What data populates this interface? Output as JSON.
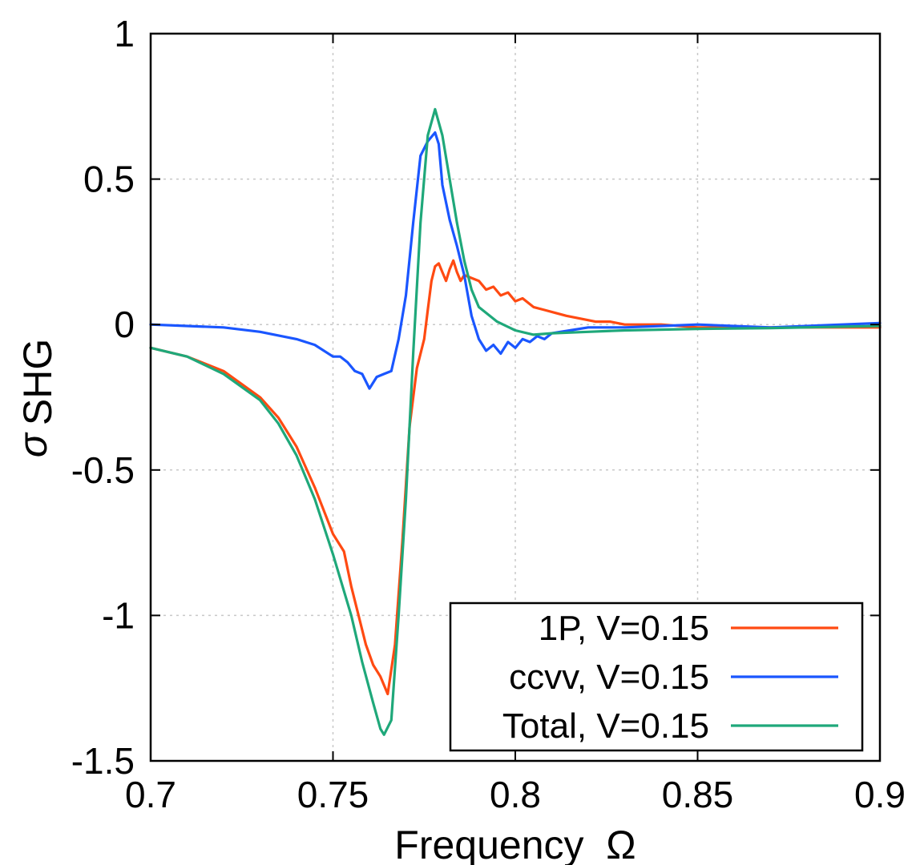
{
  "chart_data": {
    "type": "line",
    "title": "",
    "xlabel": "Frequency  Ω",
    "ylabel_main": "σ",
    "ylabel_sub": "SHG",
    "xlim": [
      0.7,
      0.9
    ],
    "ylim": [
      -1.5,
      1.0
    ],
    "grid": true,
    "legend_position": "bottom-right",
    "x_ticks": [
      0.7,
      0.75,
      0.8,
      0.85,
      0.9
    ],
    "x_tick_labels": [
      "0.7",
      "0.75",
      "0.8",
      "0.85",
      "0.9"
    ],
    "y_ticks": [
      1.0,
      0.5,
      0.0,
      -0.5,
      -1.0,
      -1.5
    ],
    "y_tick_labels": [
      "1",
      "0.5",
      "0",
      "-0.5",
      "-1",
      "-1.5"
    ],
    "series": [
      {
        "name": "1P, V=0.15",
        "color": "#ff4a12",
        "points": [
          [
            0.7,
            -0.08
          ],
          [
            0.71,
            -0.11
          ],
          [
            0.72,
            -0.16
          ],
          [
            0.73,
            -0.25
          ],
          [
            0.735,
            -0.32
          ],
          [
            0.74,
            -0.42
          ],
          [
            0.745,
            -0.56
          ],
          [
            0.75,
            -0.72
          ],
          [
            0.753,
            -0.78
          ],
          [
            0.755,
            -0.9
          ],
          [
            0.757,
            -1.0
          ],
          [
            0.759,
            -1.1
          ],
          [
            0.761,
            -1.17
          ],
          [
            0.763,
            -1.21
          ],
          [
            0.765,
            -1.27
          ],
          [
            0.767,
            -1.1
          ],
          [
            0.769,
            -0.75
          ],
          [
            0.771,
            -0.35
          ],
          [
            0.773,
            -0.15
          ],
          [
            0.775,
            -0.05
          ],
          [
            0.776,
            0.05
          ],
          [
            0.777,
            0.15
          ],
          [
            0.778,
            0.2
          ],
          [
            0.779,
            0.21
          ],
          [
            0.78,
            0.18
          ],
          [
            0.781,
            0.15
          ],
          [
            0.782,
            0.19
          ],
          [
            0.783,
            0.22
          ],
          [
            0.784,
            0.18
          ],
          [
            0.785,
            0.15
          ],
          [
            0.786,
            0.17
          ],
          [
            0.788,
            0.16
          ],
          [
            0.79,
            0.15
          ],
          [
            0.792,
            0.12
          ],
          [
            0.794,
            0.13
          ],
          [
            0.796,
            0.1
          ],
          [
            0.798,
            0.11
          ],
          [
            0.8,
            0.08
          ],
          [
            0.802,
            0.09
          ],
          [
            0.805,
            0.06
          ],
          [
            0.808,
            0.05
          ],
          [
            0.811,
            0.04
          ],
          [
            0.814,
            0.03
          ],
          [
            0.818,
            0.02
          ],
          [
            0.822,
            0.01
          ],
          [
            0.826,
            0.01
          ],
          [
            0.83,
            0.0
          ],
          [
            0.84,
            0.0
          ],
          [
            0.85,
            -0.01
          ],
          [
            0.87,
            -0.01
          ],
          [
            0.9,
            -0.01
          ]
        ]
      },
      {
        "name": "ccvv, V=0.15",
        "color": "#1a56ff",
        "points": [
          [
            0.7,
            0.0
          ],
          [
            0.71,
            -0.005
          ],
          [
            0.72,
            -0.01
          ],
          [
            0.73,
            -0.025
          ],
          [
            0.74,
            -0.05
          ],
          [
            0.745,
            -0.07
          ],
          [
            0.75,
            -0.11
          ],
          [
            0.752,
            -0.11
          ],
          [
            0.754,
            -0.13
          ],
          [
            0.756,
            -0.16
          ],
          [
            0.758,
            -0.17
          ],
          [
            0.76,
            -0.22
          ],
          [
            0.762,
            -0.18
          ],
          [
            0.764,
            -0.17
          ],
          [
            0.766,
            -0.16
          ],
          [
            0.768,
            -0.05
          ],
          [
            0.77,
            0.1
          ],
          [
            0.772,
            0.35
          ],
          [
            0.774,
            0.58
          ],
          [
            0.776,
            0.63
          ],
          [
            0.778,
            0.66
          ],
          [
            0.779,
            0.62
          ],
          [
            0.78,
            0.48
          ],
          [
            0.782,
            0.36
          ],
          [
            0.784,
            0.27
          ],
          [
            0.786,
            0.17
          ],
          [
            0.788,
            0.03
          ],
          [
            0.79,
            -0.05
          ],
          [
            0.792,
            -0.09
          ],
          [
            0.794,
            -0.07
          ],
          [
            0.796,
            -0.1
          ],
          [
            0.798,
            -0.06
          ],
          [
            0.8,
            -0.08
          ],
          [
            0.802,
            -0.05
          ],
          [
            0.804,
            -0.06
          ],
          [
            0.806,
            -0.04
          ],
          [
            0.808,
            -0.05
          ],
          [
            0.81,
            -0.03
          ],
          [
            0.815,
            -0.02
          ],
          [
            0.82,
            -0.01
          ],
          [
            0.83,
            -0.01
          ],
          [
            0.84,
            -0.005
          ],
          [
            0.85,
            0.0
          ],
          [
            0.87,
            -0.01
          ],
          [
            0.9,
            0.005
          ]
        ]
      },
      {
        "name": "Total, V=0.15",
        "color": "#1fa87a",
        "points": [
          [
            0.7,
            -0.08
          ],
          [
            0.71,
            -0.11
          ],
          [
            0.72,
            -0.17
          ],
          [
            0.73,
            -0.26
          ],
          [
            0.735,
            -0.34
          ],
          [
            0.74,
            -0.45
          ],
          [
            0.745,
            -0.6
          ],
          [
            0.75,
            -0.79
          ],
          [
            0.755,
            -1.0
          ],
          [
            0.758,
            -1.16
          ],
          [
            0.761,
            -1.3
          ],
          [
            0.763,
            -1.39
          ],
          [
            0.764,
            -1.41
          ],
          [
            0.766,
            -1.36
          ],
          [
            0.768,
            -1.0
          ],
          [
            0.77,
            -0.6
          ],
          [
            0.772,
            -0.1
          ],
          [
            0.774,
            0.35
          ],
          [
            0.776,
            0.65
          ],
          [
            0.778,
            0.74
          ],
          [
            0.78,
            0.65
          ],
          [
            0.782,
            0.5
          ],
          [
            0.784,
            0.35
          ],
          [
            0.786,
            0.22
          ],
          [
            0.788,
            0.12
          ],
          [
            0.79,
            0.06
          ],
          [
            0.795,
            0.01
          ],
          [
            0.8,
            -0.02
          ],
          [
            0.805,
            -0.035
          ],
          [
            0.81,
            -0.03
          ],
          [
            0.82,
            -0.025
          ],
          [
            0.83,
            -0.02
          ],
          [
            0.85,
            -0.015
          ],
          [
            0.87,
            -0.012
          ],
          [
            0.9,
            -0.005
          ]
        ]
      }
    ]
  }
}
